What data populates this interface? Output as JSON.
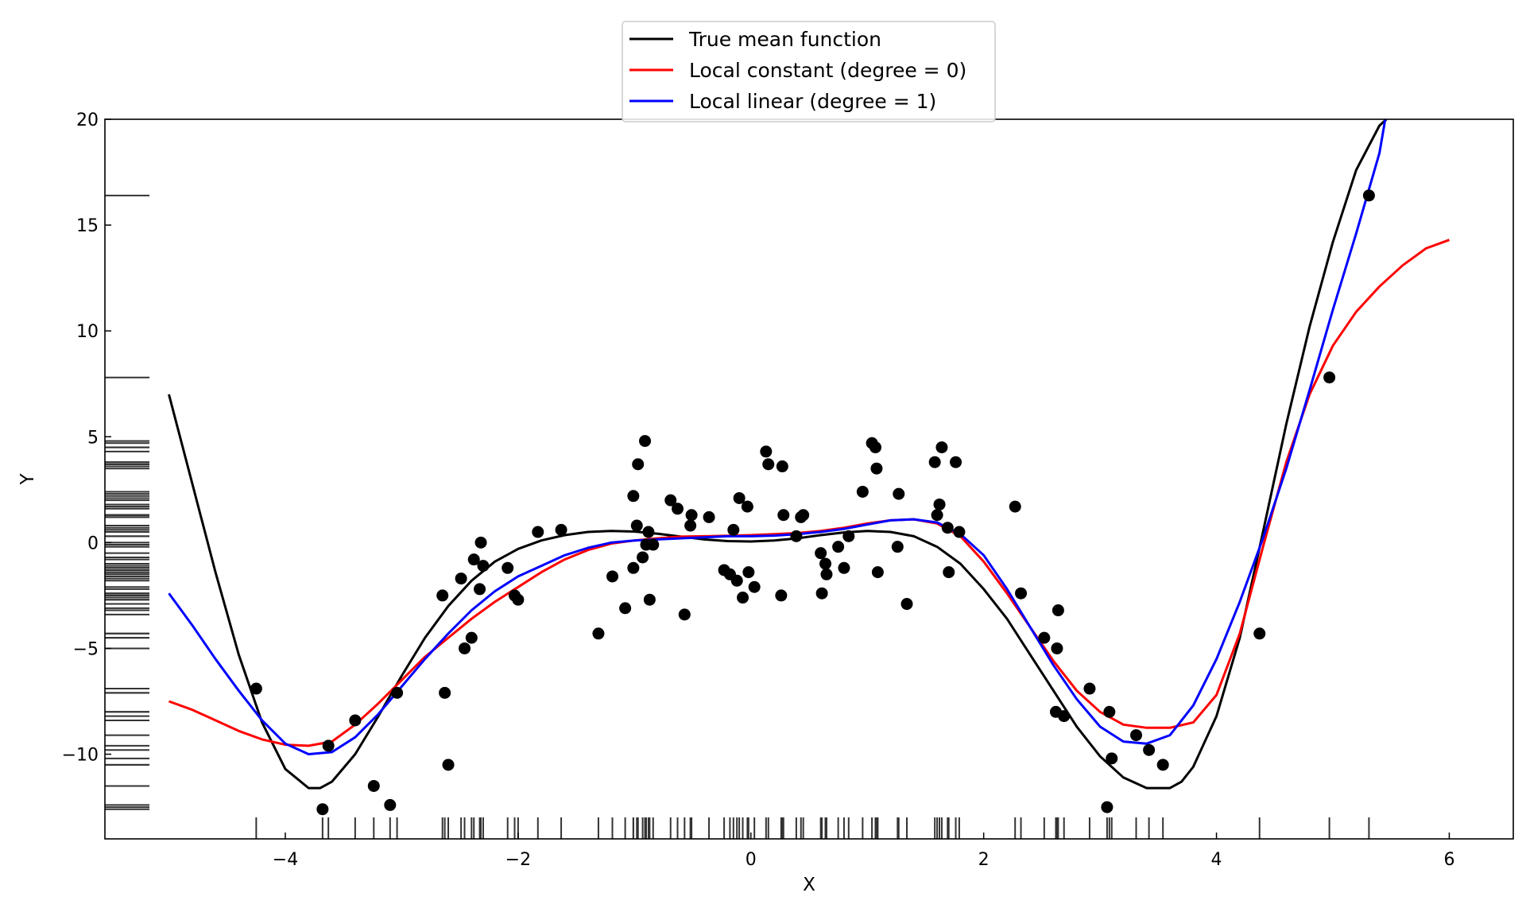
{
  "chart_data": {
    "type": "scatter",
    "title": "",
    "xlabel": "X",
    "ylabel": "Y",
    "xlim": [
      -5.55,
      6.55
    ],
    "ylim": [
      -14,
      20
    ],
    "xticks": [
      -4,
      -2,
      0,
      2,
      4,
      6
    ],
    "yticks": [
      -10,
      -5,
      0,
      5,
      10,
      15,
      20
    ],
    "xtick_labels": [
      "−4",
      "−2",
      "0",
      "2",
      "4",
      "6"
    ],
    "ytick_labels": [
      "−10",
      "−5",
      "0",
      "5",
      "10",
      "15",
      "20"
    ],
    "grid": false,
    "legend_position": "top-center",
    "rug_marks": true,
    "colors": {
      "points": "#000000",
      "rug": "#333333"
    },
    "series": [
      {
        "name": "True mean function",
        "kind": "line",
        "color": "#000000",
        "x": [
          -5.0,
          -4.8,
          -4.6,
          -4.4,
          -4.2,
          -4.0,
          -3.8,
          -3.7,
          -3.6,
          -3.4,
          -3.2,
          -3.0,
          -2.8,
          -2.6,
          -2.4,
          -2.2,
          -2.0,
          -1.8,
          -1.6,
          -1.4,
          -1.2,
          -1.0,
          -0.8,
          -0.6,
          -0.4,
          -0.2,
          0.0,
          0.2,
          0.4,
          0.6,
          0.8,
          1.0,
          1.2,
          1.4,
          1.6,
          1.8,
          2.0,
          2.2,
          2.4,
          2.6,
          2.8,
          3.0,
          3.2,
          3.4,
          3.6,
          3.7,
          3.8,
          4.0,
          4.2,
          4.4,
          4.6,
          4.8,
          5.0,
          5.2,
          5.4,
          5.46
        ],
        "y": [
          7.0,
          2.8,
          -1.4,
          -5.3,
          -8.5,
          -10.7,
          -11.6,
          -11.6,
          -11.3,
          -10.0,
          -8.2,
          -6.3,
          -4.5,
          -3.0,
          -1.8,
          -0.9,
          -0.3,
          0.1,
          0.35,
          0.5,
          0.55,
          0.52,
          0.42,
          0.28,
          0.15,
          0.07,
          0.05,
          0.1,
          0.2,
          0.35,
          0.48,
          0.55,
          0.5,
          0.3,
          -0.2,
          -1.0,
          -2.2,
          -3.6,
          -5.3,
          -7.0,
          -8.7,
          -10.1,
          -11.1,
          -11.6,
          -11.6,
          -11.3,
          -10.6,
          -8.2,
          -4.5,
          0.5,
          5.6,
          10.2,
          14.2,
          17.6,
          19.7,
          20.0
        ]
      },
      {
        "name": "Local constant (degree = 0)",
        "kind": "line",
        "color": "#ff0000",
        "x": [
          -5.0,
          -4.8,
          -4.6,
          -4.4,
          -4.2,
          -4.0,
          -3.8,
          -3.6,
          -3.4,
          -3.2,
          -3.0,
          -2.8,
          -2.6,
          -2.4,
          -2.2,
          -2.0,
          -1.8,
          -1.6,
          -1.4,
          -1.2,
          -1.0,
          -0.8,
          -0.6,
          -0.4,
          -0.2,
          0.0,
          0.2,
          0.4,
          0.6,
          0.8,
          1.0,
          1.2,
          1.4,
          1.6,
          1.8,
          2.0,
          2.2,
          2.4,
          2.6,
          2.8,
          3.0,
          3.2,
          3.4,
          3.6,
          3.8,
          4.0,
          4.2,
          4.4,
          4.6,
          4.8,
          5.0,
          5.2,
          5.4,
          5.6,
          5.8,
          6.0
        ],
        "y": [
          -7.5,
          -7.9,
          -8.4,
          -8.9,
          -9.3,
          -9.55,
          -9.6,
          -9.4,
          -8.6,
          -7.6,
          -6.5,
          -5.4,
          -4.5,
          -3.6,
          -2.8,
          -2.1,
          -1.4,
          -0.8,
          -0.35,
          -0.05,
          0.1,
          0.2,
          0.28,
          0.3,
          0.32,
          0.35,
          0.4,
          0.45,
          0.55,
          0.7,
          0.9,
          1.05,
          1.1,
          0.9,
          0.3,
          -0.9,
          -2.4,
          -4.0,
          -5.6,
          -7.0,
          -8.0,
          -8.6,
          -8.75,
          -8.75,
          -8.5,
          -7.2,
          -4.3,
          -0.2,
          3.8,
          7.0,
          9.3,
          10.9,
          12.1,
          13.1,
          13.9,
          14.3
        ]
      },
      {
        "name": "Local linear (degree = 1)",
        "kind": "line",
        "color": "#0000ff",
        "x": [
          -5.0,
          -4.8,
          -4.6,
          -4.4,
          -4.2,
          -4.0,
          -3.8,
          -3.6,
          -3.4,
          -3.2,
          -3.0,
          -2.8,
          -2.6,
          -2.4,
          -2.2,
          -2.0,
          -1.8,
          -1.6,
          -1.4,
          -1.2,
          -1.0,
          -0.8,
          -0.6,
          -0.4,
          -0.2,
          0.0,
          0.2,
          0.4,
          0.6,
          0.8,
          1.0,
          1.2,
          1.4,
          1.6,
          1.8,
          2.0,
          2.2,
          2.4,
          2.6,
          2.8,
          3.0,
          3.2,
          3.4,
          3.6,
          3.8,
          4.0,
          4.2,
          4.4,
          4.6,
          4.8,
          5.0,
          5.2,
          5.4,
          5.45
        ],
        "y": [
          -2.4,
          -3.9,
          -5.5,
          -7.0,
          -8.4,
          -9.5,
          -10.0,
          -9.9,
          -9.2,
          -8.1,
          -6.8,
          -5.5,
          -4.3,
          -3.2,
          -2.3,
          -1.6,
          -1.1,
          -0.6,
          -0.25,
          0.0,
          0.1,
          0.15,
          0.2,
          0.25,
          0.3,
          0.3,
          0.33,
          0.4,
          0.5,
          0.65,
          0.85,
          1.05,
          1.1,
          0.95,
          0.4,
          -0.6,
          -2.2,
          -4.0,
          -5.8,
          -7.4,
          -8.7,
          -9.4,
          -9.5,
          -9.1,
          -7.7,
          -5.5,
          -2.8,
          0.2,
          3.5,
          7.2,
          11.0,
          14.6,
          18.4,
          20.0
        ]
      },
      {
        "name": "",
        "kind": "scatter",
        "color": "#000000",
        "x": [
          -4.25,
          -3.68,
          -3.63,
          -3.4,
          -3.24,
          -3.1,
          -3.04,
          -2.65,
          -2.63,
          -2.6,
          -2.49,
          -2.46,
          -2.4,
          -2.38,
          -2.33,
          -2.32,
          -2.3,
          -2.09,
          -2.03,
          -2.0,
          -1.83,
          -1.63,
          -1.31,
          -1.19,
          -1.08,
          -1.01,
          -1.01,
          -0.98,
          -0.97,
          -0.93,
          -0.91,
          -0.9,
          -0.88,
          -0.87,
          -0.84,
          -0.69,
          -0.63,
          -0.57,
          -0.52,
          -0.51,
          -0.36,
          -0.23,
          -0.18,
          -0.15,
          -0.12,
          -0.1,
          -0.07,
          -0.03,
          -0.02,
          0.03,
          0.13,
          0.15,
          0.26,
          0.27,
          0.28,
          0.39,
          0.43,
          0.45,
          0.6,
          0.61,
          0.64,
          0.65,
          0.75,
          0.8,
          0.84,
          0.96,
          1.04,
          1.07,
          1.08,
          1.09,
          1.26,
          1.27,
          1.34,
          1.58,
          1.6,
          1.62,
          1.64,
          1.69,
          1.7,
          1.76,
          1.79,
          2.27,
          2.32,
          2.52,
          2.62,
          2.63,
          2.64,
          2.69,
          2.91,
          3.06,
          3.08,
          3.1,
          3.31,
          3.42,
          3.54,
          4.37,
          4.97,
          5.31
        ],
        "y": [
          -6.9,
          -12.6,
          -9.6,
          -8.4,
          -11.5,
          -12.4,
          -7.1,
          -2.5,
          -7.1,
          -10.5,
          -1.7,
          -5.0,
          -4.5,
          -0.8,
          -2.2,
          0.0,
          -1.1,
          -1.2,
          -2.5,
          -2.7,
          0.5,
          0.6,
          -4.3,
          -1.6,
          -3.1,
          -1.2,
          2.2,
          0.8,
          3.7,
          -0.7,
          4.8,
          -0.1,
          0.5,
          -2.7,
          -0.1,
          2.0,
          1.6,
          -3.4,
          0.8,
          1.3,
          1.2,
          -1.3,
          -1.5,
          0.6,
          -1.8,
          2.1,
          -2.6,
          1.7,
          -1.4,
          -2.1,
          4.3,
          3.7,
          -2.5,
          3.6,
          1.3,
          0.3,
          1.2,
          1.3,
          -0.5,
          -2.4,
          -1.0,
          -1.5,
          -0.2,
          -1.2,
          0.3,
          2.4,
          4.7,
          4.5,
          3.5,
          -1.4,
          -0.2,
          2.3,
          -2.9,
          3.8,
          1.3,
          1.8,
          4.5,
          0.7,
          -1.4,
          3.8,
          0.5,
          1.7,
          -2.4,
          -4.5,
          -8.0,
          -5.0,
          -3.2,
          -8.2,
          -6.9,
          -12.5,
          -8.0,
          -10.2,
          -9.1,
          -9.8,
          -10.5,
          -4.3,
          7.8,
          16.4
        ]
      }
    ]
  }
}
